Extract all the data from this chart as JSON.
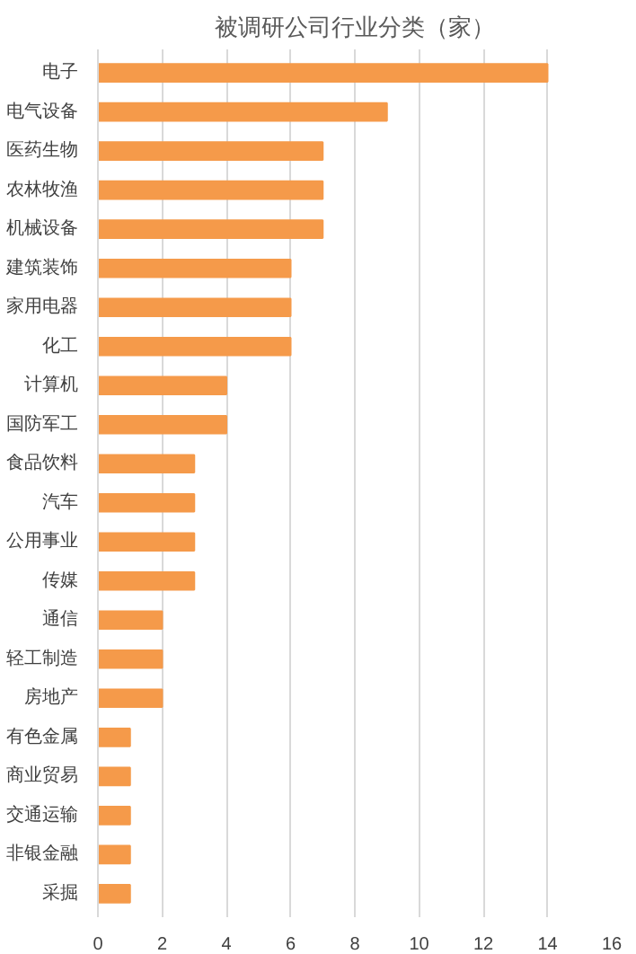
{
  "chart_data": {
    "type": "bar",
    "orientation": "horizontal",
    "title": "被调研公司行业分类（家）",
    "categories": [
      "电子",
      "电气设备",
      "医药生物",
      "农林牧渔",
      "机械设备",
      "建筑装饰",
      "家用电器",
      "化工",
      "计算机",
      "国防军工",
      "食品饮料",
      "汽车",
      "公用事业",
      "传媒",
      "通信",
      "轻工制造",
      "房地产",
      "有色金属",
      "商业贸易",
      "交通运输",
      "非银金融",
      "采掘"
    ],
    "values": [
      14,
      9,
      7,
      7,
      7,
      6,
      6,
      6,
      4,
      4,
      3,
      3,
      3,
      3,
      2,
      2,
      2,
      1,
      1,
      1,
      1,
      1
    ],
    "color": "#f59a4a",
    "xlim": [
      0,
      16
    ],
    "xticks": [
      0,
      2,
      4,
      6,
      8,
      10,
      12,
      14,
      16
    ],
    "grid": "x"
  }
}
